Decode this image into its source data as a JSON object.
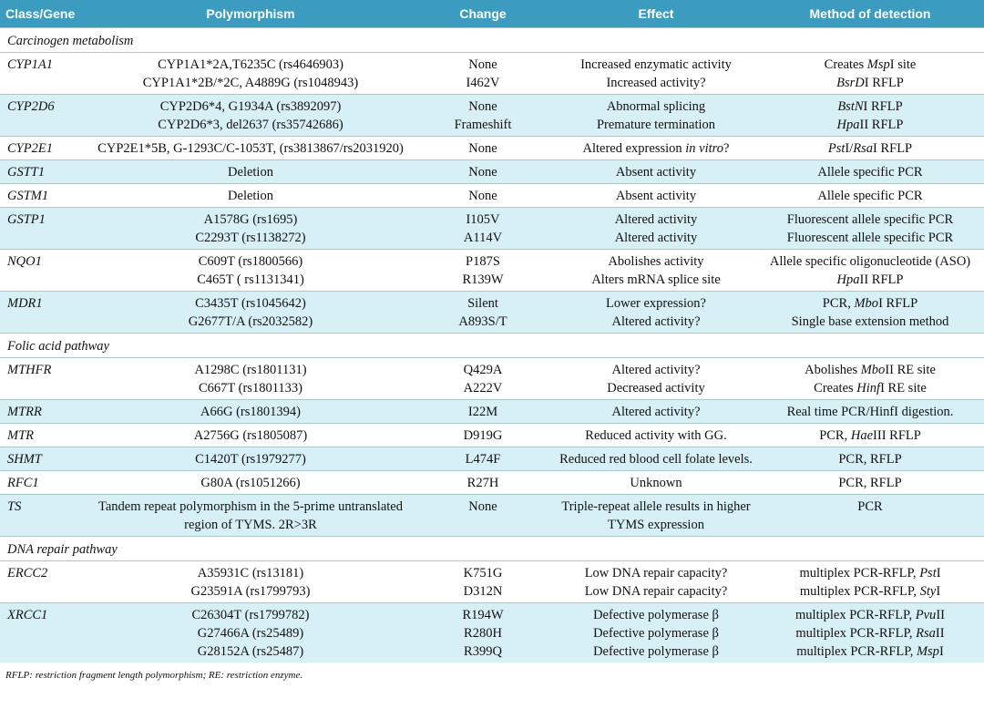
{
  "header": {
    "columns": [
      "Class/Gene",
      "Polymorphism",
      "Change",
      "Effect",
      "Method of detection"
    ]
  },
  "sections": [
    {
      "title": "Carcinogen metabolism",
      "rows": [
        {
          "gene": "CYP1A1",
          "lines": [
            [
              "CYP1A1*2A,T6235C (rs4646903)",
              "None",
              "Increased enzymatic activity",
              [
                "Creates ",
                {
                  "italic": "Msp"
                },
                "I site"
              ]
            ],
            [
              "CYP1A1*2B/*2C, A4889G (rs1048943)",
              "I462V",
              "Increased activity?",
              [
                {
                  "italic": "BsrD"
                },
                "I RFLP"
              ]
            ]
          ]
        },
        {
          "gene": "CYP2D6",
          "lines": [
            [
              "CYP2D6*4, G1934A (rs3892097)",
              "None",
              "Abnormal splicing",
              [
                {
                  "italic": "BstN"
                },
                "I RFLP"
              ]
            ],
            [
              "CYP2D6*3, del2637 (rs35742686)",
              "Frameshift",
              "Premature termination",
              [
                {
                  "italic": "Hpa"
                },
                "II RFLP"
              ]
            ]
          ]
        },
        {
          "gene": "CYP2E1",
          "lines": [
            [
              "CYP2E1*5B, G-1293C/C-1053T, (rs3813867/rs2031920)",
              "None",
              [
                "Altered expression ",
                {
                  "italic": "in vitro"
                },
                "?"
              ],
              [
                {
                  "italic": "Pst"
                },
                "I/",
                {
                  "italic": "Rsa"
                },
                "I RFLP"
              ]
            ]
          ]
        },
        {
          "gene": "GSTT1",
          "lines": [
            [
              "Deletion",
              "None",
              "Absent activity",
              "Allele specific PCR"
            ]
          ]
        },
        {
          "gene": "GSTM1",
          "lines": [
            [
              "Deletion",
              "None",
              "Absent activity",
              "Allele specific PCR"
            ]
          ]
        },
        {
          "gene": "GSTP1",
          "lines": [
            [
              "A1578G (rs1695)",
              "I105V",
              "Altered activity",
              "Fluorescent allele specific PCR"
            ],
            [
              "C2293T (rs1138272)",
              "A114V",
              "Altered activity",
              "Fluorescent allele specific PCR"
            ]
          ]
        },
        {
          "gene": "NQO1",
          "lines": [
            [
              "C609T (rs1800566)",
              "P187S",
              "Abolishes activity",
              "Allele specific oligonucleotide (ASO)"
            ],
            [
              "C465T ( rs1131341)",
              "R139W",
              "Alters mRNA splice site",
              [
                {
                  "italic": "Hpa"
                },
                "II RFLP"
              ]
            ]
          ]
        },
        {
          "gene": "MDR1",
          "lines": [
            [
              "C3435T (rs1045642)",
              "Silent",
              "Lower expression?",
              [
                "PCR, ",
                {
                  "italic": "Mbo"
                },
                "I RFLP"
              ]
            ],
            [
              "G2677T/A (rs2032582)",
              "A893S/T",
              "Altered activity?",
              "Single base extension method"
            ]
          ]
        }
      ]
    },
    {
      "title": "Folic acid pathway",
      "rows": [
        {
          "gene": "MTHFR",
          "lines": [
            [
              "A1298C (rs1801131)",
              "Q429A",
              "Altered activity?",
              [
                "Abolishes ",
                {
                  "italic": "Mbo"
                },
                "II RE site"
              ]
            ],
            [
              "C667T (rs1801133)",
              "A222V",
              "Decreased activity",
              [
                "Creates ",
                {
                  "italic": "Hinf"
                },
                "I RE site"
              ]
            ]
          ]
        },
        {
          "gene": "MTRR",
          "lines": [
            [
              "A66G (rs1801394)",
              "I22M",
              "Altered activity?",
              "Real time PCR/HinfI digestion."
            ]
          ]
        },
        {
          "gene": "MTR",
          "lines": [
            [
              "A2756G (rs1805087)",
              "D919G",
              "Reduced activity with GG.",
              [
                "PCR, ",
                {
                  "italic": "Hae"
                },
                "III RFLP"
              ]
            ]
          ]
        },
        {
          "gene": "SHMT",
          "lines": [
            [
              "C1420T (rs1979277)",
              "L474F",
              "Reduced red blood cell folate levels.",
              "PCR, RFLP"
            ]
          ]
        },
        {
          "gene": "RFC1",
          "lines": [
            [
              "G80A (rs1051266)",
              "R27H",
              "Unknown",
              "PCR, RFLP"
            ]
          ]
        },
        {
          "gene": "TS",
          "lines": [
            [
              "Tandem repeat polymorphism in the 5-prime untranslated region of TYMS. 2R>3R",
              "None",
              "Triple-repeat allele results in higher TYMS expression",
              "PCR"
            ]
          ]
        }
      ]
    },
    {
      "title": "DNA repair pathway",
      "rows": [
        {
          "gene": "ERCC2",
          "lines": [
            [
              "A35931C (rs13181)",
              "K751G",
              "Low DNA repair capacity?",
              [
                "multiplex PCR-RFLP, ",
                {
                  "italic": "Pst"
                },
                "I"
              ]
            ],
            [
              "G23591A (rs1799793)",
              "D312N",
              "Low DNA repair capacity?",
              [
                "multiplex PCR-RFLP, ",
                {
                  "italic": "Sty"
                },
                "I"
              ]
            ]
          ]
        },
        {
          "gene": "XRCC1",
          "lines": [
            [
              "C26304T (rs1799782)",
              "R194W",
              "Defective polymerase β",
              [
                "multiplex PCR-RFLP, ",
                {
                  "italic": "Pvu"
                },
                "II"
              ]
            ],
            [
              "G27466A (rs25489)",
              "R280H",
              "Defective polymerase β",
              [
                "multiplex PCR-RFLP, ",
                {
                  "italic": "Rsa"
                },
                "II"
              ]
            ],
            [
              "G28152A (rs25487)",
              "R399Q",
              "Defective polymerase β",
              [
                "multiplex PCR-RFLP, ",
                {
                  "italic": "Msp"
                },
                "I"
              ]
            ]
          ]
        }
      ]
    }
  ],
  "footnote": "RFLP: restriction fragment length polymorphism; RE: restriction enzyme."
}
